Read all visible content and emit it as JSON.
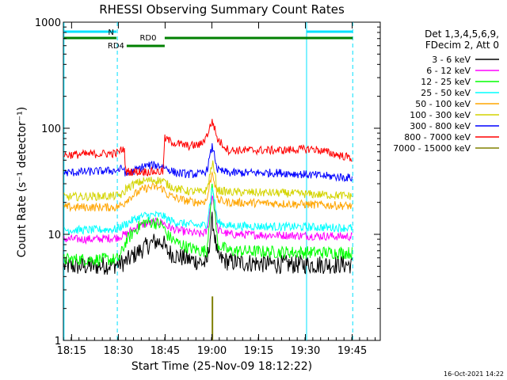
{
  "chart_data": {
    "type": "line",
    "title": "RHESSI Observing Summary Count Rates",
    "xlabel": "Start Time (25-Nov-09 18:12:22)",
    "ylabel": "Count Rate (s⁻¹ detector⁻¹)",
    "y_scale": "log",
    "ylim": [
      1,
      1000
    ],
    "xlim_minutes": [
      "18:12:22",
      "19:54:00"
    ],
    "x_ticks": [
      "18:15",
      "18:30",
      "18:45",
      "19:00",
      "19:15",
      "19:30",
      "19:45"
    ],
    "x_tick_minutes": [
      2.63,
      17.63,
      32.63,
      47.63,
      62.63,
      77.63,
      92.63
    ],
    "y_ticks": [
      1,
      10,
      100,
      1000
    ],
    "y_tick_labels": [
      "1",
      "10",
      "100",
      "1000"
    ],
    "legend": {
      "header": [
        "Det 1,3,4,5,6,9,",
        "FDecim 2, Att 0"
      ],
      "placement": "right"
    },
    "timestamp": "16-Oct-2021 14:22",
    "annotations": {
      "night_label": "N",
      "rd0_label": "RD0",
      "rd4_label": "RD4"
    },
    "night_bars": [
      [
        0.2,
        17.0
      ],
      [
        78.0,
        92.8
      ]
    ],
    "rd0_bars": [
      [
        0.2,
        17.0
      ],
      [
        32.5,
        92.8
      ]
    ],
    "rd4_bar": [
      20.3,
      32.5
    ],
    "dashed_markers_minutes": [
      17.3,
      92.8
    ],
    "solid_markers_minutes": [
      0.2,
      78.0
    ],
    "spike_marker": {
      "x": 47.8,
      "y": [
        1.0,
        2.6
      ]
    },
    "series": [
      {
        "name": "3 - 6 keV",
        "color": "#000000",
        "points": [
          [
            0.2,
            5.0
          ],
          [
            10,
            5.0
          ],
          [
            17,
            5.2
          ],
          [
            20,
            5.5
          ],
          [
            23,
            6.5
          ],
          [
            26,
            7.5
          ],
          [
            29,
            8.5
          ],
          [
            32,
            8.5
          ],
          [
            33,
            7.0
          ],
          [
            36,
            6.3
          ],
          [
            40,
            5.8
          ],
          [
            44,
            5.5
          ],
          [
            46,
            5.2
          ],
          [
            47.8,
            14.0
          ],
          [
            49.5,
            6.0
          ],
          [
            53,
            5.5
          ],
          [
            70,
            5.2
          ],
          [
            92.8,
            5.2
          ]
        ]
      },
      {
        "name": "6 - 12 keV",
        "color": "#ff00ff",
        "points": [
          [
            0.2,
            9.0
          ],
          [
            10,
            9.0
          ],
          [
            17,
            9.3
          ],
          [
            20,
            10.0
          ],
          [
            23,
            11.5
          ],
          [
            26,
            12.5
          ],
          [
            29,
            13.0
          ],
          [
            32,
            13.0
          ],
          [
            33,
            12.0
          ],
          [
            36,
            11.0
          ],
          [
            40,
            10.5
          ],
          [
            44,
            10.0
          ],
          [
            46,
            10.5
          ],
          [
            47.8,
            24.0
          ],
          [
            49.5,
            11.0
          ],
          [
            53,
            10.0
          ],
          [
            70,
            9.8
          ],
          [
            92.8,
            9.5
          ]
        ]
      },
      {
        "name": "12 - 25 keV",
        "color": "#00ff00",
        "points": [
          [
            0.2,
            5.8
          ],
          [
            17,
            5.8
          ],
          [
            18,
            6.0
          ],
          [
            20,
            8.5
          ],
          [
            23,
            11.0
          ],
          [
            26,
            13.0
          ],
          [
            29,
            13.0
          ],
          [
            32,
            12.0
          ],
          [
            33,
            10.0
          ],
          [
            36,
            8.5
          ],
          [
            40,
            7.5
          ],
          [
            44,
            7.0
          ],
          [
            46,
            7.0
          ],
          [
            47.8,
            30.0
          ],
          [
            49.5,
            8.0
          ],
          [
            53,
            7.0
          ],
          [
            70,
            6.8
          ],
          [
            92.8,
            6.7
          ]
        ]
      },
      {
        "name": "25 - 50 keV",
        "color": "#00ffff",
        "points": [
          [
            0.2,
            11.0
          ],
          [
            10,
            11.0
          ],
          [
            17,
            11.2
          ],
          [
            20,
            12.5
          ],
          [
            23,
            14.0
          ],
          [
            26,
            15.0
          ],
          [
            29,
            15.2
          ],
          [
            32,
            15.0
          ],
          [
            33,
            14.0
          ],
          [
            36,
            13.0
          ],
          [
            40,
            12.5
          ],
          [
            44,
            12.0
          ],
          [
            46,
            12.5
          ],
          [
            47.8,
            28.0
          ],
          [
            49.5,
            13.0
          ],
          [
            53,
            12.0
          ],
          [
            70,
            11.8
          ],
          [
            92.8,
            11.5
          ]
        ]
      },
      {
        "name": "50 - 100 keV",
        "color": "#ffa500",
        "points": [
          [
            0.2,
            18.0
          ],
          [
            17,
            18.0
          ],
          [
            19.5,
            19.5
          ],
          [
            20,
            21.0
          ],
          [
            23,
            24.0
          ],
          [
            26,
            27.0
          ],
          [
            29,
            28.0
          ],
          [
            32,
            27.0
          ],
          [
            33,
            24.0
          ],
          [
            36,
            22.0
          ],
          [
            40,
            20.5
          ],
          [
            44,
            20.0
          ],
          [
            46,
            21.0
          ],
          [
            47.8,
            40.0
          ],
          [
            49.5,
            21.0
          ],
          [
            53,
            20.0
          ],
          [
            70,
            19.5
          ],
          [
            92.8,
            18.5
          ]
        ]
      },
      {
        "name": "100 - 300 keV",
        "color": "#d4d400",
        "points": [
          [
            0.2,
            22.5
          ],
          [
            17,
            23.0
          ],
          [
            19.5,
            24.0
          ],
          [
            20,
            27.0
          ],
          [
            23,
            30.0
          ],
          [
            26,
            32.0
          ],
          [
            29,
            32.5
          ],
          [
            32,
            32.0
          ],
          [
            33,
            30.0
          ],
          [
            36,
            27.0
          ],
          [
            40,
            25.5
          ],
          [
            44,
            25.0
          ],
          [
            46,
            26.0
          ],
          [
            47.8,
            48.0
          ],
          [
            49.5,
            26.0
          ],
          [
            53,
            25.0
          ],
          [
            70,
            24.5
          ],
          [
            92.8,
            23.0
          ]
        ]
      },
      {
        "name": "300 - 800 keV",
        "color": "#0000ff",
        "points": [
          [
            0.2,
            38.0
          ],
          [
            17,
            40.0
          ],
          [
            19.5,
            42.0
          ],
          [
            20,
            36.0
          ],
          [
            23,
            40.0
          ],
          [
            26,
            44.0
          ],
          [
            29,
            45.0
          ],
          [
            32,
            44.0
          ],
          [
            33,
            42.0
          ],
          [
            36,
            38.0
          ],
          [
            40,
            37.0
          ],
          [
            44,
            37.0
          ],
          [
            46,
            40.0
          ],
          [
            47.8,
            68.0
          ],
          [
            49.5,
            40.0
          ],
          [
            53,
            38.0
          ],
          [
            70,
            38.0
          ],
          [
            92.8,
            34.0
          ]
        ]
      },
      {
        "name": "800 - 7000 keV",
        "color": "#ff0000",
        "points": [
          [
            0.2,
            56.0
          ],
          [
            17,
            58.0
          ],
          [
            19.5,
            65.0
          ],
          [
            20,
            39.0
          ],
          [
            26,
            39.0
          ],
          [
            32,
            39.0
          ],
          [
            32.5,
            80.0
          ],
          [
            36,
            72.0
          ],
          [
            40,
            68.0
          ],
          [
            44,
            70.0
          ],
          [
            46,
            85.0
          ],
          [
            47.8,
            118.0
          ],
          [
            49.5,
            78.0
          ],
          [
            53,
            62.0
          ],
          [
            70,
            62.0
          ],
          [
            80,
            64.0
          ],
          [
            92.8,
            52.0
          ]
        ]
      },
      {
        "name": "7000 - 15000 keV",
        "color": "#808000",
        "points": []
      }
    ]
  }
}
